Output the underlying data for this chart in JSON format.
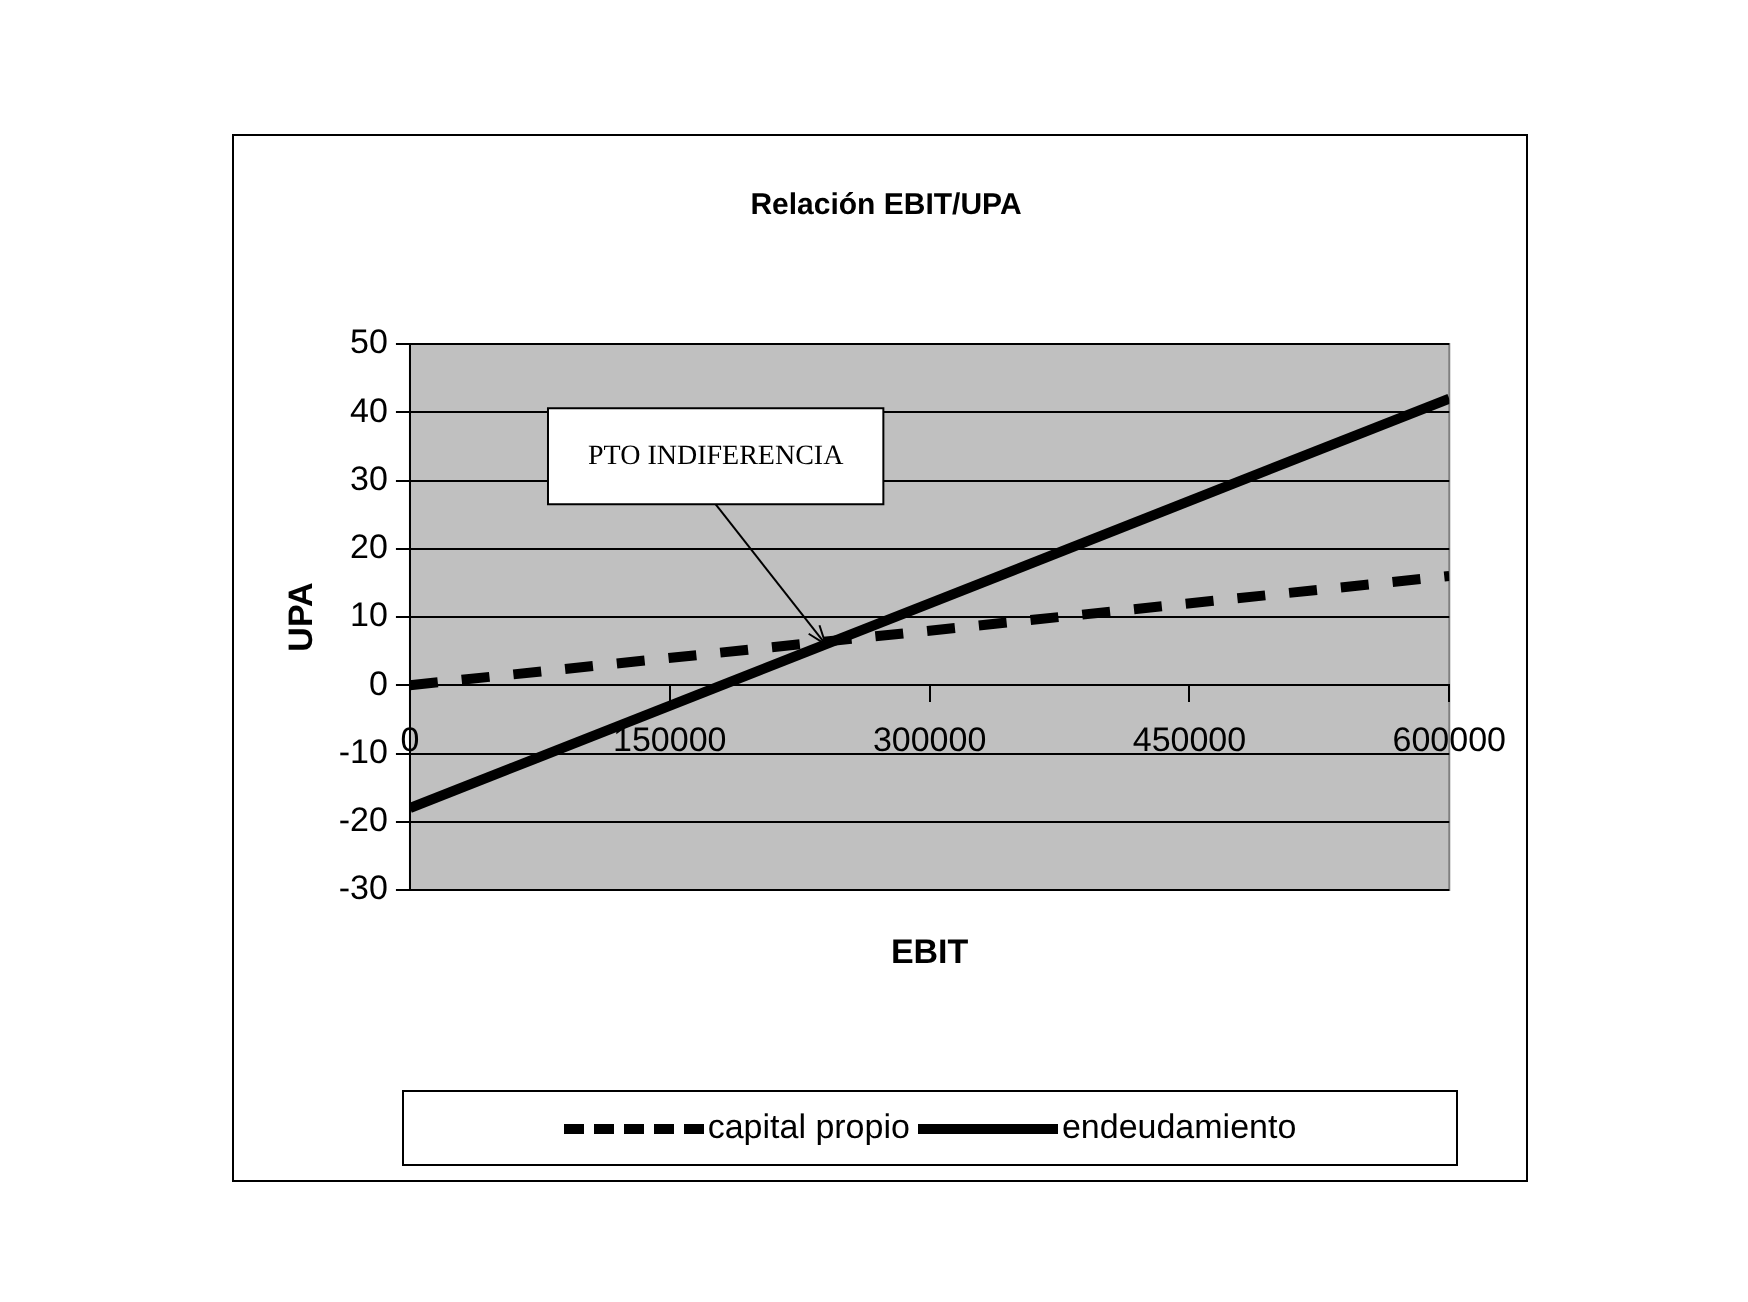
{
  "chart_data": {
    "type": "line",
    "title": "Relación EBIT/UPA",
    "xlabel": "EBIT",
    "ylabel": "UPA",
    "series": [
      {
        "name": "capital propio",
        "color": "#000000",
        "values": [
          0,
          16
        ],
        "line_style": "dashed"
      },
      {
        "name": "endeudamiento",
        "color": "#000000",
        "values": [
          -18,
          42
        ],
        "line_style": "solid"
      }
    ],
    "x": [
      0,
      600000
    ],
    "xlim": [
      0,
      600000
    ],
    "xticks": [
      0,
      150000,
      300000,
      450000,
      600000
    ],
    "ylim": [
      -30,
      50
    ],
    "yticks": [
      -30,
      -20,
      -10,
      0,
      10,
      20,
      30,
      40,
      50
    ],
    "grid": "y",
    "legend": "bottom",
    "marker": "none",
    "annotations": [
      {
        "text": "PTO INDIFERENCIA",
        "x": 240000,
        "y": 6
      }
    ]
  }
}
